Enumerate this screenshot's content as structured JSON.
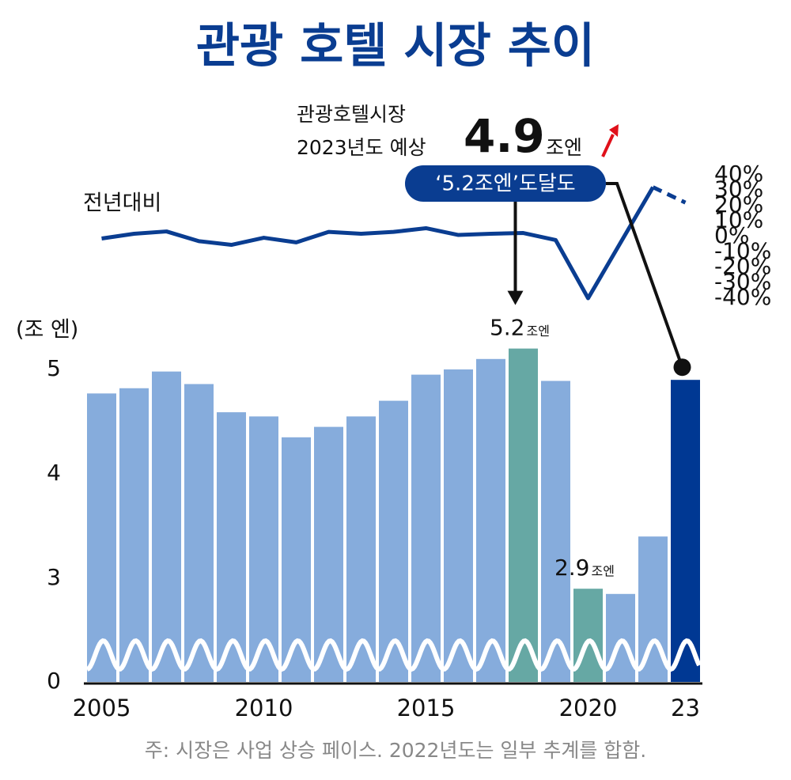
{
  "chart_data": {
    "type": "bar_line",
    "title": "관광 호텔 시장 추이",
    "y_label": "(조 엔)",
    "footnote": "주: 시장은 사업 상승 페이스. 2022년도는 일부 추계를 합함.",
    "categories": [
      "2005",
      null,
      null,
      null,
      null,
      "2010",
      null,
      null,
      null,
      null,
      "2015",
      null,
      null,
      null,
      null,
      "2020",
      null,
      null,
      "23"
    ],
    "bars": {
      "values": [
        4.77,
        4.82,
        4.98,
        4.86,
        4.59,
        4.55,
        4.35,
        4.45,
        4.55,
        4.7,
        4.95,
        5.0,
        5.1,
        5.2,
        4.89,
        2.9,
        2.85,
        3.4,
        4.9
      ],
      "colors": [
        "#86acdc",
        "#86acdc",
        "#86acdc",
        "#86acdc",
        "#86acdc",
        "#86acdc",
        "#86acdc",
        "#86acdc",
        "#86acdc",
        "#86acdc",
        "#86acdc",
        "#86acdc",
        "#86acdc",
        "#66a8a4",
        "#86acdc",
        "#66a8a4",
        "#86acdc",
        "#86acdc",
        "#003893"
      ],
      "data_label_unit": "조엔"
    },
    "line": {
      "name": "전년대비",
      "color": "#0a3d91",
      "values": [
        -1.3,
        1.8,
        3.3,
        -3,
        -5.4,
        -0.8,
        -3.8,
        3,
        1.8,
        3,
        5.4,
        1,
        1.8,
        2.3,
        -2.3,
        -40,
        -4,
        32,
        22
      ],
      "dashed_from": 17
    },
    "ylim": [
      0,
      5.3
    ],
    "yticks": [
      0,
      3,
      4,
      5
    ],
    "y2lim": [
      -40,
      40
    ],
    "y2ticks": [
      {
        "value": 40,
        "label": "40%"
      },
      {
        "value": 30,
        "label": "30%"
      },
      {
        "value": 20,
        "label": "20%"
      },
      {
        "value": 10,
        "label": "10%"
      },
      {
        "value": 0,
        "label": "0%"
      },
      {
        "value": -10,
        "label": "-10%"
      },
      {
        "value": -20,
        "label": "-20%"
      },
      {
        "value": -30,
        "label": "-30%"
      },
      {
        "value": -40,
        "label": "-40%"
      }
    ],
    "annotation": {
      "line1": "관광호텔시장",
      "line2": "2023년도 예상",
      "unit": "조엔",
      "callout": "‘5.2조엔’도달도"
    }
  }
}
